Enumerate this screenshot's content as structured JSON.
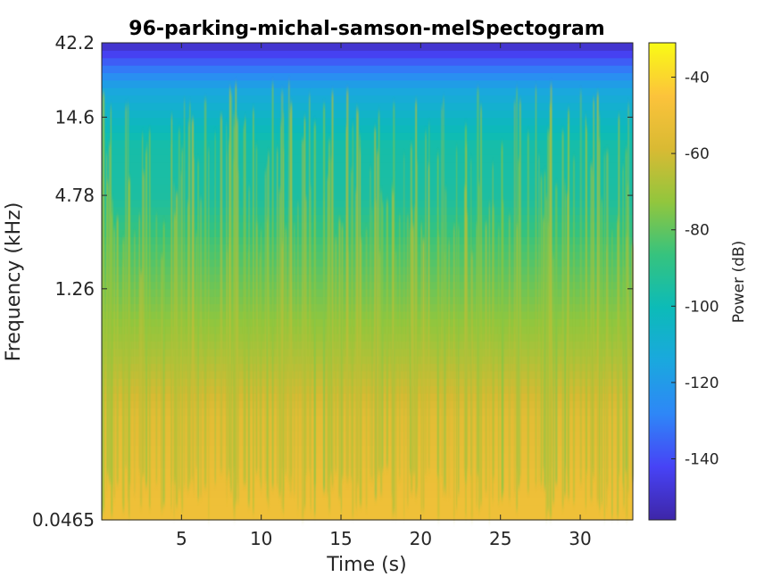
{
  "chart_data": {
    "type": "heatmap",
    "title": "96-parking-michal-samson-melSpectogram",
    "xlabel": "Time (s)",
    "ylabel": "Frequency (kHz)",
    "xlim": [
      0,
      33.3
    ],
    "x_ticks": [
      "5",
      "10",
      "15",
      "20",
      "25",
      "30"
    ],
    "y_scale": "log",
    "ylim": [
      0.0465,
      42.2
    ],
    "y_ticks": [
      "0.0465",
      "1.26",
      "4.78",
      "14.6",
      "42.2"
    ],
    "colorbar": {
      "label": "Power (dB)",
      "range": [
        -156,
        -31
      ],
      "ticks": [
        "-40",
        "-60",
        "-80",
        "-100",
        "-120",
        "-140"
      ],
      "colormap": "parula"
    },
    "band_summary_db": [
      {
        "freq_khz": 0.06,
        "power_db": -50
      },
      {
        "freq_khz": 0.2,
        "power_db": -55
      },
      {
        "freq_khz": 0.6,
        "power_db": -70
      },
      {
        "freq_khz": 1.26,
        "power_db": -78
      },
      {
        "freq_khz": 2.5,
        "power_db": -85
      },
      {
        "freq_khz": 4.78,
        "power_db": -95
      },
      {
        "freq_khz": 10,
        "power_db": -97
      },
      {
        "freq_khz": 14.6,
        "power_db": -105
      },
      {
        "freq_khz": 22,
        "power_db": -115
      },
      {
        "freq_khz": 42.2,
        "power_db": -152
      }
    ]
  },
  "colors": {
    "parula": [
      "#3e26a8",
      "#4743f6",
      "#2e87f7",
      "#1aa8de",
      "#0cbbb8",
      "#36c37e",
      "#92c63d",
      "#d9ba33",
      "#fcc33b",
      "#f9fb15"
    ]
  }
}
